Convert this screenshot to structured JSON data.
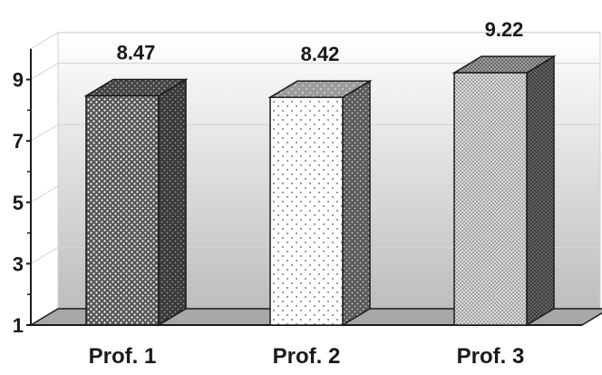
{
  "chart_data": {
    "type": "bar",
    "style": "3d",
    "categories": [
      "Prof. 1",
      "Prof. 2",
      "Prof. 3"
    ],
    "values": [
      8.47,
      8.42,
      9.22
    ],
    "value_labels": [
      "8.47",
      "8.42",
      "9.22"
    ],
    "yticks": [
      1,
      3,
      5,
      7,
      9
    ],
    "ytick_labels": [
      "1",
      "3",
      "5",
      "7",
      "9"
    ],
    "ylim": [
      1,
      10
    ],
    "title": "",
    "xlabel": "",
    "ylabel": "",
    "grid": true,
    "legend": "none",
    "bar_patterns": [
      "dense-dots-dark",
      "sparse-dots-white",
      "crosshatch-light"
    ],
    "colors": {
      "bar_dark": "#4a4a4a",
      "bar_light": "#ffffff",
      "bar_hatch": "#d8d8d8",
      "wall_top": "#ffffff",
      "wall_bottom": "#bdbdbd",
      "floor": "#a8a8a8"
    }
  }
}
